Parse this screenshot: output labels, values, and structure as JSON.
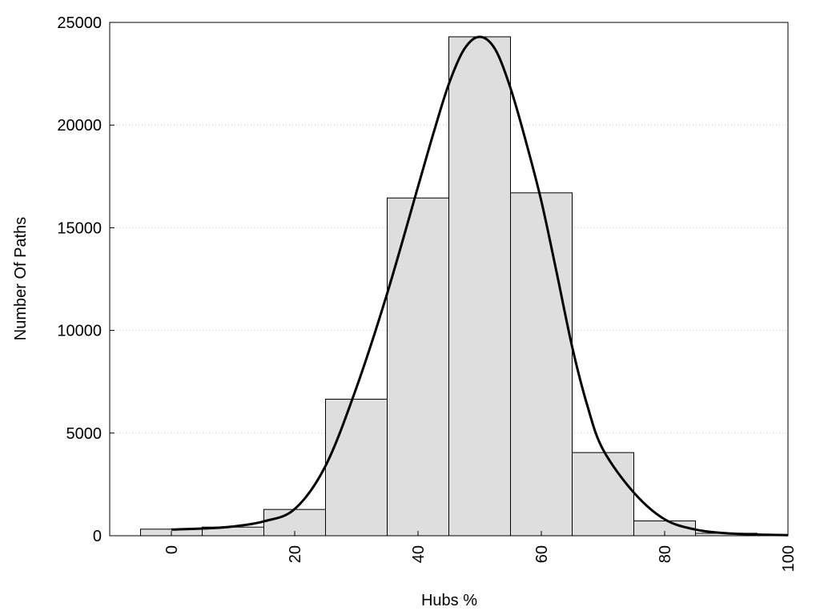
{
  "chart_data": {
    "type": "bar",
    "title": "",
    "xlabel": "Hubs %",
    "ylabel": "Number Of Paths",
    "xlim": [
      -10,
      100
    ],
    "ylim": [
      0,
      25000
    ],
    "x_ticks": [
      0,
      20,
      40,
      60,
      80,
      100
    ],
    "y_ticks": [
      0,
      5000,
      10000,
      15000,
      20000,
      25000
    ],
    "grid": "horizontal-dotted",
    "bin_width": 10,
    "bars": [
      {
        "center": 0,
        "value": 320
      },
      {
        "center": 10,
        "value": 420
      },
      {
        "center": 20,
        "value": 1280
      },
      {
        "center": 30,
        "value": 6650
      },
      {
        "center": 40,
        "value": 16450
      },
      {
        "center": 50,
        "value": 24300
      },
      {
        "center": 60,
        "value": 16700
      },
      {
        "center": 70,
        "value": 4050
      },
      {
        "center": 80,
        "value": 720
      },
      {
        "center": 90,
        "value": 120
      }
    ],
    "density_curve": {
      "x": [
        0,
        5,
        10,
        15,
        20,
        25,
        30,
        35,
        40,
        42.5,
        45,
        47.5,
        50,
        52.5,
        55,
        57.5,
        60,
        62.5,
        65,
        67.5,
        70,
        75,
        80,
        85,
        90,
        95,
        100
      ],
      "y": [
        300,
        350,
        450,
        700,
        1300,
        3400,
        7200,
        11800,
        17000,
        19600,
        22000,
        23700,
        24300,
        23700,
        21800,
        19200,
        16300,
        12800,
        9200,
        6300,
        4200,
        2100,
        800,
        300,
        120,
        60,
        30
      ]
    },
    "colors": {
      "bar_fill": "#dedede",
      "bar_stroke": "#000000",
      "curve": "#000000",
      "grid": "#c8c8c8"
    }
  }
}
